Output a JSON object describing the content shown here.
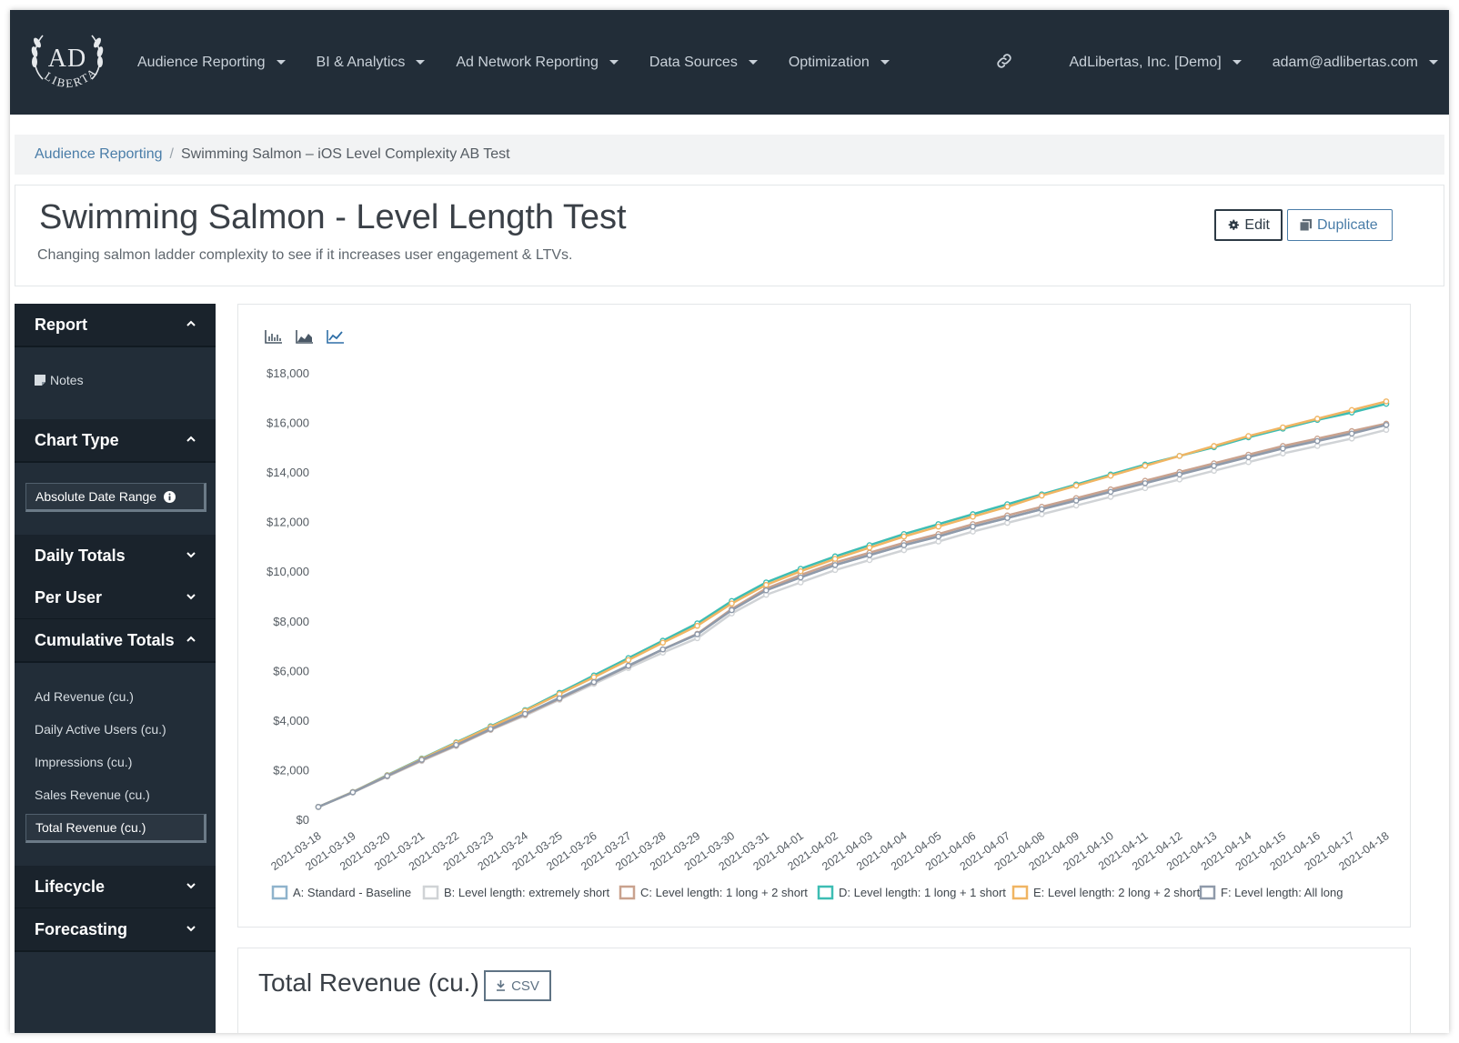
{
  "navbar": {
    "items": [
      {
        "label": "Audience Reporting"
      },
      {
        "label": "BI & Analytics"
      },
      {
        "label": "Ad Network Reporting"
      },
      {
        "label": "Data Sources"
      },
      {
        "label": "Optimization"
      }
    ],
    "org": "AdLibertas, Inc. [Demo]",
    "user": "adam@adlibertas.com"
  },
  "logo": {
    "top": "AD",
    "bottom": "LIBERTAS"
  },
  "breadcrumb": {
    "parent": "Audience Reporting",
    "separator": "/",
    "current": "Swimming Salmon – iOS Level Complexity AB Test"
  },
  "header": {
    "title": "Swimming Salmon - Level Length Test",
    "subtitle": "Changing salmon ladder complexity to see if it increases user engagement & LTVs.",
    "edit_label": "Edit",
    "duplicate_label": "Duplicate"
  },
  "sidebar": {
    "report": {
      "label": "Report",
      "notes": "Notes"
    },
    "chart_type": {
      "label": "Chart Type",
      "option": "Absolute Date Range"
    },
    "daily_totals": "Daily Totals",
    "per_user": "Per User",
    "cumulative": {
      "label": "Cumulative Totals",
      "items": [
        "Ad Revenue (cu.)",
        "Daily Active Users (cu.)",
        "Impressions (cu.)",
        "Sales Revenue (cu.)",
        "Total Revenue (cu.)"
      ],
      "selected": "Total Revenue (cu.)"
    },
    "lifecycle": "Lifecycle",
    "forecasting": "Forecasting"
  },
  "bottom": {
    "title": "Total Revenue (cu.)",
    "csv_label": "CSV"
  },
  "chart_data": {
    "type": "line",
    "ylim": [
      0,
      18000
    ],
    "yticks": [
      "$0",
      "$2,000",
      "$4,000",
      "$6,000",
      "$8,000",
      "$10,000",
      "$12,000",
      "$14,000",
      "$16,000",
      "$18,000"
    ],
    "x": [
      "2021-03-18",
      "2021-03-19",
      "2021-03-20",
      "2021-03-21",
      "2021-03-22",
      "2021-03-23",
      "2021-03-24",
      "2021-03-25",
      "2021-03-26",
      "2021-03-27",
      "2021-03-28",
      "2021-03-29",
      "2021-03-30",
      "2021-03-31",
      "2021-04-01",
      "2021-04-02",
      "2021-04-03",
      "2021-04-04",
      "2021-04-05",
      "2021-04-06",
      "2021-04-07",
      "2021-04-08",
      "2021-04-09",
      "2021-04-10",
      "2021-04-11",
      "2021-04-12",
      "2021-04-13",
      "2021-04-14",
      "2021-04-15",
      "2021-04-16",
      "2021-04-17",
      "2021-04-18"
    ],
    "series": [
      {
        "name": "A: Standard - Baseline",
        "color": "#8fb3cc",
        "values": [
          500,
          1100,
          1750,
          2400,
          3000,
          3650,
          4250,
          4900,
          5550,
          6200,
          6850,
          7450,
          8450,
          9250,
          9750,
          10250,
          10650,
          11050,
          11400,
          11800,
          12150,
          12500,
          12900,
          13250,
          13600,
          13950,
          14300,
          14650,
          15000,
          15300,
          15600,
          15900
        ]
      },
      {
        "name": "B: Level length: extremely short",
        "color": "#d0d3d6",
        "values": [
          500,
          1080,
          1720,
          2350,
          2950,
          3600,
          4180,
          4820,
          5460,
          6100,
          6720,
          7300,
          8300,
          9050,
          9550,
          10050,
          10450,
          10850,
          11200,
          11600,
          11950,
          12300,
          12650,
          13000,
          13350,
          13700,
          14050,
          14400,
          14750,
          15050,
          15350,
          15700
        ]
      },
      {
        "name": "C: Level length: 1 long + 2 short",
        "color": "#c9a28e",
        "values": [
          500,
          1090,
          1740,
          2380,
          2980,
          3620,
          4220,
          4860,
          5520,
          6180,
          6850,
          7480,
          8480,
          9300,
          9850,
          10350,
          10750,
          11150,
          11500,
          11900,
          12250,
          12600,
          12950,
          13300,
          13650,
          14000,
          14350,
          14700,
          15050,
          15350,
          15650,
          15950
        ]
      },
      {
        "name": "D: Level length: 1 long + 1 short",
        "color": "#3dbdb3",
        "values": [
          500,
          1100,
          1780,
          2450,
          3100,
          3750,
          4400,
          5100,
          5800,
          6500,
          7200,
          7900,
          8800,
          9550,
          10100,
          10600,
          11050,
          11500,
          11900,
          12300,
          12700,
          13100,
          13500,
          13900,
          14300,
          14650,
          15000,
          15400,
          15750,
          16100,
          16400,
          16750
        ]
      },
      {
        "name": "E: Level length: 2 long + 2 short",
        "color": "#f0b563",
        "values": [
          500,
          1100,
          1770,
          2430,
          3080,
          3720,
          4370,
          5050,
          5730,
          6420,
          7120,
          7800,
          8700,
          9450,
          10000,
          10500,
          10950,
          11400,
          11800,
          12200,
          12600,
          13050,
          13450,
          13850,
          14250,
          14650,
          15050,
          15450,
          15800,
          16150,
          16500,
          16850
        ]
      },
      {
        "name": "F: Level length: All long",
        "color": "#8f9aaa",
        "values": [
          500,
          1090,
          1750,
          2400,
          3000,
          3640,
          4250,
          4880,
          5530,
          6190,
          6850,
          7460,
          8430,
          9230,
          9750,
          10250,
          10650,
          11050,
          11400,
          11800,
          12150,
          12500,
          12850,
          13200,
          13550,
          13900,
          14250,
          14600,
          14950,
          15250,
          15550,
          15900
        ]
      }
    ]
  }
}
